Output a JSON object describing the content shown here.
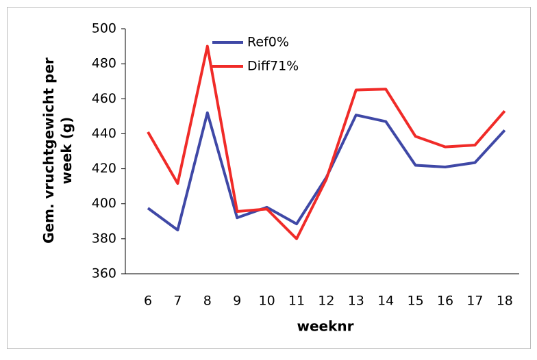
{
  "chart_data": {
    "type": "line",
    "categories": [
      "6",
      "7",
      "8",
      "9",
      "10",
      "11",
      "12",
      "13",
      "14",
      "15",
      "16",
      "17",
      "18"
    ],
    "series": [
      {
        "name": "Ref0%",
        "color": "#3f48a6",
        "values": [
          397.5,
          385,
          452,
          392,
          398,
          388.5,
          415,
          450.7,
          447,
          422,
          421,
          423.5,
          442
        ]
      },
      {
        "name": "Diff71%",
        "color": "#f02b28",
        "values": [
          441,
          411.6,
          490,
          395.6,
          397,
          380,
          414,
          465,
          465.5,
          438.5,
          432.5,
          433.5,
          453
        ]
      }
    ],
    "ylim": [
      360,
      500
    ],
    "yticks": [
      360,
      380,
      400,
      420,
      440,
      460,
      480,
      500
    ],
    "ylabel": "Gem. vruchtgewicht per week (g)",
    "xlabel": "weeknr",
    "grid": false
  }
}
